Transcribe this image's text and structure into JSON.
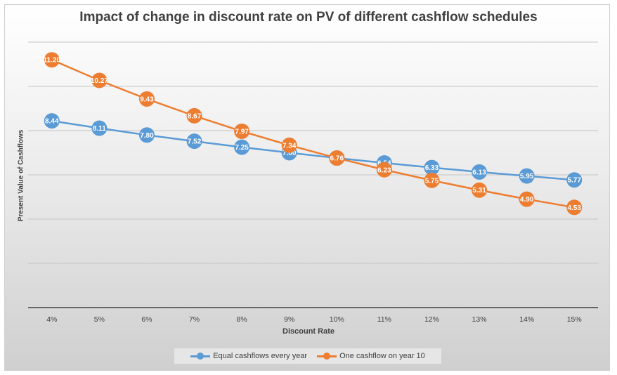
{
  "chart_data": {
    "type": "line",
    "title": "Impact of change in discount rate on PV of different cashflow schedules",
    "xlabel": "Discount Rate",
    "ylabel": "Present Value of Cashflows",
    "categories": [
      "4%",
      "5%",
      "6%",
      "7%",
      "8%",
      "9%",
      "10%",
      "11%",
      "12%",
      "13%",
      "14%",
      "15%"
    ],
    "ylim": [
      0,
      12
    ],
    "grid": true,
    "legend_position": "bottom",
    "series": [
      {
        "name": "Equal cashflows every year",
        "color": "#5b9bd5",
        "values": [
          8.44,
          8.11,
          7.8,
          7.52,
          7.25,
          7.0,
          6.76,
          6.54,
          6.33,
          6.13,
          5.95,
          5.77
        ],
        "labels": [
          "8.44",
          "8.11",
          "7.80",
          "7.52",
          "7.25",
          "7.00",
          "6.76",
          "6.54",
          "6.33",
          "6.13",
          "5.95",
          "5.77"
        ]
      },
      {
        "name": "One cashflow on year 10",
        "color": "#ed7d31",
        "values": [
          11.2,
          10.27,
          9.43,
          8.67,
          7.97,
          7.34,
          6.76,
          6.23,
          5.75,
          5.31,
          4.9,
          4.53
        ],
        "labels": [
          "11.20",
          "10.27",
          "9.43",
          "8.67",
          "7.97",
          "7.34",
          "6.76",
          "6.23",
          "5.75",
          "5.31",
          "4.90",
          "4.53"
        ]
      }
    ]
  }
}
